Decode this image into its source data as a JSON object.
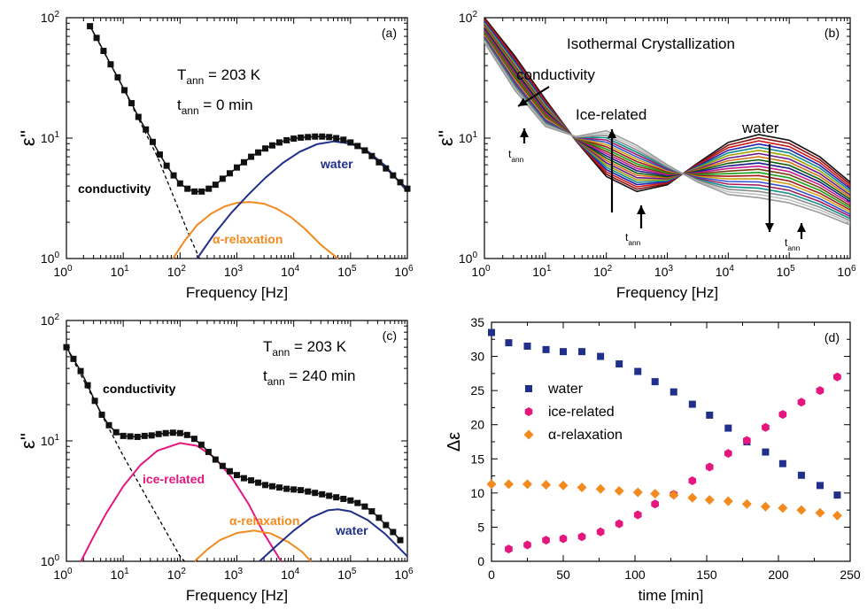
{
  "colors": {
    "water": "#1f2f8a",
    "ice": "#e5167e",
    "alpha": "#f28a1e",
    "measured": "#111111",
    "conductivity": "#000000",
    "grey_curves": [
      "#9a9a9a",
      "#c2c2c2"
    ]
  },
  "chart_data": [
    {
      "panel": "a",
      "type": "scatter",
      "panel_label": "(a)",
      "xlabel": "Frequency [Hz]",
      "ylabel": "ε''",
      "xscale": "log",
      "yscale": "log",
      "xlim": [
        1,
        1000000
      ],
      "ylim": [
        1,
        100
      ],
      "xticks": [
        "10^0",
        "10^1",
        "10^2",
        "10^3",
        "10^4",
        "10^5",
        "10^6"
      ],
      "yticks": [
        "10^0",
        "10^1",
        "10^2"
      ],
      "annotations": {
        "T_label": "T",
        "T_sub": "ann",
        "T_val": " = 203 K",
        "t_label": "t",
        "t_sub": "ann",
        "t_val": " = 0 min"
      },
      "curve_labels": {
        "conductivity": "conductivity",
        "water": "water",
        "alpha": "α-relaxation"
      },
      "measured": {
        "x": [
          2.6,
          3.4,
          4.5,
          6,
          8,
          10.5,
          14,
          18.5,
          25,
          33,
          44,
          58,
          77,
          100,
          135,
          180,
          240,
          320,
          420,
          560,
          750,
          1000,
          1330,
          1780,
          2370,
          3160,
          4200,
          5600,
          7500,
          10000,
          13300,
          17800,
          23700,
          31600,
          42000,
          56000,
          75000,
          100000,
          133000,
          178000,
          237000,
          316000,
          420000,
          560000,
          750000,
          1000000
        ],
        "y": [
          85,
          68,
          53,
          41,
          32,
          25,
          19.5,
          15,
          11.8,
          9.3,
          7.3,
          5.9,
          4.9,
          4.2,
          3.8,
          3.6,
          3.6,
          3.8,
          4.1,
          4.6,
          5.1,
          5.7,
          6.3,
          7,
          7.6,
          8.2,
          8.7,
          9.2,
          9.6,
          9.9,
          10.1,
          10.2,
          10.3,
          10.3,
          10.2,
          10,
          9.7,
          9.2,
          8.6,
          7.9,
          7.1,
          6.3,
          5.6,
          4.9,
          4.3,
          3.8
        ]
      },
      "components": {
        "water": {
          "x": [
            200,
            400,
            800,
            1600,
            3200,
            6400,
            12800,
            25600,
            51200,
            102400,
            204800,
            409600,
            1000000
          ],
          "y": [
            1,
            1.6,
            2.4,
            3.4,
            4.7,
            6.2,
            7.7,
            8.9,
            9.4,
            9,
            7.7,
            5.9,
            3.6
          ]
        },
        "alpha": {
          "x": [
            75,
            120,
            200,
            350,
            600,
            1000,
            1700,
            3000,
            5000,
            9000,
            16000,
            30000,
            60000
          ],
          "y": [
            1,
            1.4,
            1.9,
            2.35,
            2.7,
            2.9,
            2.95,
            2.85,
            2.6,
            2.2,
            1.75,
            1.3,
            1
          ]
        },
        "conductivity": {
          "x": [
            2.6,
            10,
            40,
            150,
            220
          ],
          "y": [
            85,
            26,
            7,
            1.5,
            1
          ]
        }
      }
    },
    {
      "panel": "b",
      "type": "line",
      "panel_label": "(b)",
      "title": "Isothermal Crystallization",
      "xlabel": "Frequency [Hz]",
      "ylabel": "ε''",
      "xscale": "log",
      "yscale": "log",
      "xlim": [
        1,
        1000000
      ],
      "ylim": [
        1,
        100
      ],
      "xticks": [
        "10^0",
        "10^1",
        "10^2",
        "10^3",
        "10^4",
        "10^5",
        "10^6"
      ],
      "yticks": [
        "10^0",
        "10^1",
        "10^2"
      ],
      "labels": {
        "conductivity": "conductivity",
        "ice": "Ice-related",
        "water": "water",
        "t_ann_main": "t",
        "t_ann_sub": "ann"
      },
      "series_count": 21,
      "note": "curves evolve with annealing time t_ann from high water peak / no ice peak to low water peak / high ice peak",
      "endpoint_first": {
        "x_log": [
          0,
          0.5,
          1,
          1.5,
          2,
          2.5,
          3,
          3.5,
          4,
          4.5,
          5,
          5.5,
          6
        ],
        "y": [
          100,
          48,
          21,
          9.5,
          4.8,
          3.6,
          4.1,
          6.2,
          9.2,
          10.7,
          9.6,
          7,
          4.3
        ]
      },
      "endpoint_last": {
        "x_log": [
          0,
          0.5,
          1,
          1.5,
          2,
          2.5,
          3,
          3.5,
          4,
          4.5,
          5,
          5.5,
          6
        ],
        "y": [
          62,
          25,
          12.5,
          10.3,
          11.5,
          8.7,
          6,
          4.3,
          3.4,
          3.2,
          2.9,
          2.4,
          1.9
        ]
      }
    },
    {
      "panel": "c",
      "type": "scatter",
      "panel_label": "(c)",
      "xlabel": "Frequency [Hz]",
      "ylabel": "ε''",
      "xscale": "log",
      "yscale": "log",
      "xlim": [
        1,
        1000000
      ],
      "ylim": [
        1,
        100
      ],
      "xticks": [
        "10^0",
        "10^1",
        "10^2",
        "10^3",
        "10^4",
        "10^5",
        "10^6"
      ],
      "yticks": [
        "10^0",
        "10^1",
        "10^2"
      ],
      "annotations": {
        "T_label": "T",
        "T_sub": "ann",
        "T_val": " = 203 K",
        "t_label": "t",
        "t_sub": "ann",
        "t_val": " = 240 min"
      },
      "curve_labels": {
        "conductivity": "conductivity",
        "ice": "ice-related",
        "alpha": "α-relaxation",
        "water": "water"
      },
      "measured": {
        "x": [
          1,
          1.33,
          1.78,
          2.37,
          3.16,
          4.2,
          5.6,
          7.5,
          10,
          13.3,
          17.8,
          23.7,
          31.6,
          42,
          56,
          75,
          100,
          133,
          178,
          237,
          316,
          420,
          560,
          750,
          1000,
          1330,
          1780,
          2370,
          3160,
          4200,
          5600,
          7500,
          10000,
          13300,
          17800,
          23700,
          31600,
          42000,
          56000,
          75000,
          100000,
          133000,
          178000,
          237000,
          316000,
          420000,
          560000,
          750000
        ],
        "y": [
          60,
          48,
          38,
          29,
          21.5,
          16.5,
          13.5,
          11.8,
          11,
          10.9,
          10.8,
          11,
          11.1,
          11.4,
          11.6,
          11.7,
          11.6,
          11.2,
          10.4,
          9.3,
          8.1,
          7,
          6.2,
          5.6,
          5.2,
          4.9,
          4.7,
          4.5,
          4.3,
          4.2,
          4.1,
          4,
          3.95,
          3.9,
          3.8,
          3.7,
          3.6,
          3.5,
          3.4,
          3.3,
          3.2,
          3.05,
          2.85,
          2.6,
          2.3,
          2,
          1.75,
          1.5
        ]
      },
      "components": {
        "ice": {
          "x": [
            1.8,
            3,
            5,
            10,
            20,
            40,
            100,
            200,
            400,
            800,
            1600,
            3000,
            6000
          ],
          "y": [
            1,
            1.6,
            2.5,
            4.2,
            6.3,
            8.3,
            9.6,
            9.1,
            7.3,
            5,
            3,
            1.7,
            1
          ]
        },
        "alpha": {
          "x": [
            180,
            300,
            500,
            1000,
            2000,
            4000,
            8000,
            14000,
            20000
          ],
          "y": [
            1,
            1.25,
            1.5,
            1.72,
            1.8,
            1.7,
            1.45,
            1.2,
            1
          ]
        },
        "water": {
          "x": [
            2500,
            5000,
            10000,
            20000,
            40000,
            60000,
            100000,
            200000,
            400000,
            1000000
          ],
          "y": [
            1,
            1.35,
            1.8,
            2.3,
            2.65,
            2.7,
            2.6,
            2.2,
            1.7,
            1.1
          ]
        },
        "conductivity": {
          "x": [
            1,
            10,
            100,
            120
          ],
          "y": [
            60,
            7.5,
            1.1,
            1
          ]
        }
      }
    },
    {
      "panel": "d",
      "type": "scatter",
      "panel_label": "(d)",
      "xlabel": "time [min]",
      "ylabel": "Δε",
      "xlim": [
        0,
        250
      ],
      "ylim": [
        0,
        35
      ],
      "xticks": [
        "0",
        "50",
        "100",
        "150",
        "200",
        "250"
      ],
      "yticks": [
        "0",
        "5",
        "10",
        "15",
        "20",
        "25",
        "30",
        "35"
      ],
      "legend_position": "upper-left",
      "series": [
        {
          "name": "water",
          "marker": "square",
          "x": [
            0,
            12,
            25,
            38,
            50,
            63,
            76,
            89,
            102,
            114,
            127,
            140,
            152,
            165,
            178,
            191,
            203,
            216,
            229,
            241
          ],
          "y": [
            33.5,
            32,
            31.5,
            31,
            30.7,
            30.7,
            30,
            28.9,
            27.8,
            26.3,
            24.8,
            23,
            21.4,
            19.5,
            17.5,
            16,
            14.3,
            12.6,
            11.1,
            9.7
          ]
        },
        {
          "name": "ice-related",
          "marker": "hexagon",
          "x": [
            12,
            25,
            38,
            50,
            63,
            76,
            89,
            102,
            114,
            127,
            140,
            152,
            165,
            178,
            191,
            203,
            216,
            229,
            241
          ],
          "y": [
            1.8,
            2.4,
            3.1,
            3.3,
            3.6,
            4.3,
            5.5,
            6.8,
            8.4,
            9.8,
            11.8,
            13.8,
            15.8,
            17.7,
            19.6,
            21.5,
            23.3,
            25,
            27
          ]
        },
        {
          "name": "α-relaxation",
          "marker": "diamond",
          "x": [
            0,
            12,
            25,
            38,
            50,
            63,
            76,
            89,
            102,
            114,
            127,
            140,
            152,
            165,
            178,
            191,
            203,
            216,
            229,
            241
          ],
          "y": [
            11.3,
            11.3,
            11.3,
            11.2,
            11.1,
            10.8,
            10.6,
            10.3,
            10.1,
            9.9,
            9.7,
            9.3,
            9,
            8.8,
            8.4,
            8,
            7.8,
            7.5,
            7.1,
            6.7
          ]
        }
      ]
    }
  ]
}
